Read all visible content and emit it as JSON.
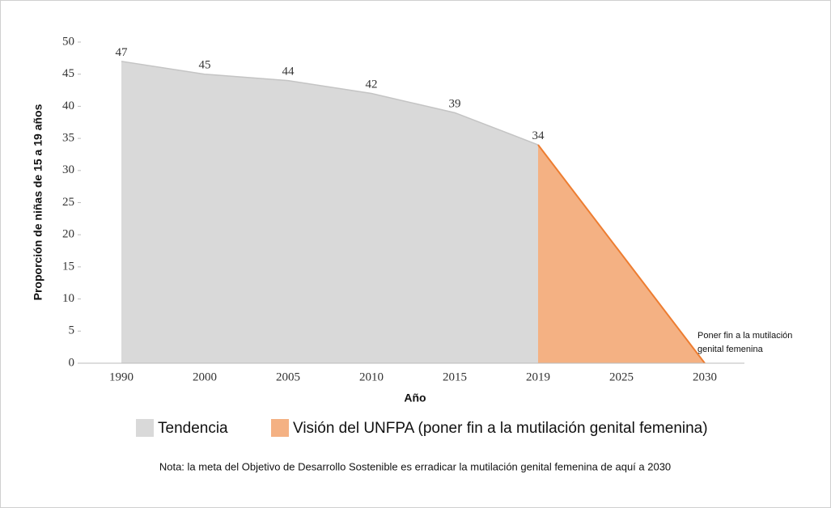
{
  "chart_data": {
    "type": "area",
    "x_label": "Año",
    "y_label": "Proporción de niñas de 15 a 19 años",
    "categories": [
      "1990",
      "2000",
      "2005",
      "2010",
      "2015",
      "2019",
      "2025",
      "2030"
    ],
    "series": [
      {
        "name": "Tendencia",
        "color": "#d9d9d9",
        "line_color": "#c4c4c4",
        "values": [
          47,
          45,
          44,
          42,
          39,
          34,
          null,
          null
        ],
        "data_labels": true
      },
      {
        "name": "Visión del UNFPA (poner fin a la mutilación genital femenina)",
        "color": "#f4b183",
        "line_color": "#ed7d31",
        "values": [
          null,
          null,
          null,
          null,
          null,
          34,
          17,
          0
        ],
        "data_labels": false
      }
    ],
    "ylim": [
      0,
      50
    ],
    "yticks": [
      0,
      5,
      10,
      15,
      20,
      25,
      30,
      35,
      40,
      45,
      50
    ],
    "annotation": "Poner fin a la mutilación genital femenina",
    "note": "Nota: la meta del Objetivo de Desarrollo Sostenible es erradicar la mutilación genital femenina de aquí a 2030",
    "legend": "bottom"
  }
}
